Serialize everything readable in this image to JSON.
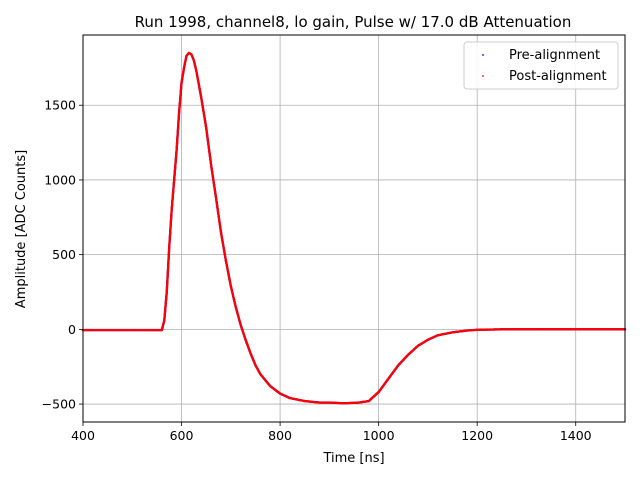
{
  "chart_data": {
    "type": "scatter",
    "title": "Run 1998, channel8, lo gain, Pulse w/ 17.0 dB Attenuation",
    "xlabel": "Time [ns]",
    "ylabel": "Amplitude [ADC Counts]",
    "xlim": [
      400,
      1500
    ],
    "ylim": [
      -620,
      1970
    ],
    "xticks": [
      400,
      600,
      800,
      1000,
      1200,
      1400
    ],
    "yticks": [
      -500,
      0,
      500,
      1000,
      1500
    ],
    "grid": true,
    "legend_position": "top-right",
    "series": [
      {
        "name": "Pre-alignment",
        "color": "#0000ff",
        "marker": "dot",
        "points": [
          [
            400,
            -5
          ],
          [
            440,
            -5
          ],
          [
            480,
            -5
          ],
          [
            520,
            -5
          ],
          [
            550,
            -5
          ],
          [
            560,
            -5
          ],
          [
            565,
            60
          ],
          [
            570,
            250
          ],
          [
            575,
            550
          ],
          [
            580,
            800
          ],
          [
            585,
            1000
          ],
          [
            590,
            1200
          ],
          [
            595,
            1450
          ],
          [
            600,
            1650
          ],
          [
            605,
            1750
          ],
          [
            610,
            1830
          ],
          [
            615,
            1850
          ],
          [
            620,
            1840
          ],
          [
            625,
            1800
          ],
          [
            630,
            1730
          ],
          [
            640,
            1550
          ],
          [
            650,
            1350
          ],
          [
            660,
            1100
          ],
          [
            670,
            880
          ],
          [
            680,
            650
          ],
          [
            690,
            460
          ],
          [
            700,
            290
          ],
          [
            710,
            150
          ],
          [
            720,
            30
          ],
          [
            730,
            -70
          ],
          [
            740,
            -160
          ],
          [
            750,
            -240
          ],
          [
            760,
            -300
          ],
          [
            780,
            -380
          ],
          [
            800,
            -430
          ],
          [
            820,
            -460
          ],
          [
            850,
            -480
          ],
          [
            880,
            -490
          ],
          [
            900,
            -490
          ],
          [
            930,
            -495
          ],
          [
            960,
            -490
          ],
          [
            980,
            -480
          ],
          [
            1000,
            -420
          ],
          [
            1020,
            -330
          ],
          [
            1040,
            -240
          ],
          [
            1060,
            -170
          ],
          [
            1080,
            -110
          ],
          [
            1100,
            -70
          ],
          [
            1120,
            -40
          ],
          [
            1150,
            -20
          ],
          [
            1180,
            -8
          ],
          [
            1200,
            -3
          ],
          [
            1250,
            0
          ],
          [
            1300,
            0
          ],
          [
            1350,
            0
          ],
          [
            1400,
            0
          ],
          [
            1450,
            0
          ],
          [
            1500,
            0
          ]
        ]
      },
      {
        "name": "Post-alignment",
        "color": "#ff0000",
        "marker": "dot",
        "points": [
          [
            400,
            -5
          ],
          [
            440,
            -5
          ],
          [
            480,
            -5
          ],
          [
            520,
            -5
          ],
          [
            550,
            -5
          ],
          [
            560,
            -5
          ],
          [
            565,
            60
          ],
          [
            570,
            250
          ],
          [
            575,
            550
          ],
          [
            580,
            800
          ],
          [
            585,
            1000
          ],
          [
            590,
            1200
          ],
          [
            595,
            1450
          ],
          [
            600,
            1650
          ],
          [
            605,
            1750
          ],
          [
            610,
            1830
          ],
          [
            615,
            1850
          ],
          [
            620,
            1840
          ],
          [
            625,
            1800
          ],
          [
            630,
            1730
          ],
          [
            640,
            1550
          ],
          [
            650,
            1350
          ],
          [
            660,
            1100
          ],
          [
            670,
            880
          ],
          [
            680,
            650
          ],
          [
            690,
            460
          ],
          [
            700,
            290
          ],
          [
            710,
            150
          ],
          [
            720,
            30
          ],
          [
            730,
            -70
          ],
          [
            740,
            -160
          ],
          [
            750,
            -240
          ],
          [
            760,
            -300
          ],
          [
            780,
            -380
          ],
          [
            800,
            -430
          ],
          [
            820,
            -460
          ],
          [
            850,
            -480
          ],
          [
            880,
            -490
          ],
          [
            900,
            -490
          ],
          [
            930,
            -495
          ],
          [
            960,
            -490
          ],
          [
            980,
            -480
          ],
          [
            1000,
            -420
          ],
          [
            1020,
            -330
          ],
          [
            1040,
            -240
          ],
          [
            1060,
            -170
          ],
          [
            1080,
            -110
          ],
          [
            1100,
            -70
          ],
          [
            1120,
            -40
          ],
          [
            1150,
            -20
          ],
          [
            1180,
            -8
          ],
          [
            1200,
            -3
          ],
          [
            1250,
            0
          ],
          [
            1300,
            0
          ],
          [
            1350,
            0
          ],
          [
            1400,
            0
          ],
          [
            1450,
            0
          ],
          [
            1500,
            0
          ]
        ]
      }
    ]
  }
}
